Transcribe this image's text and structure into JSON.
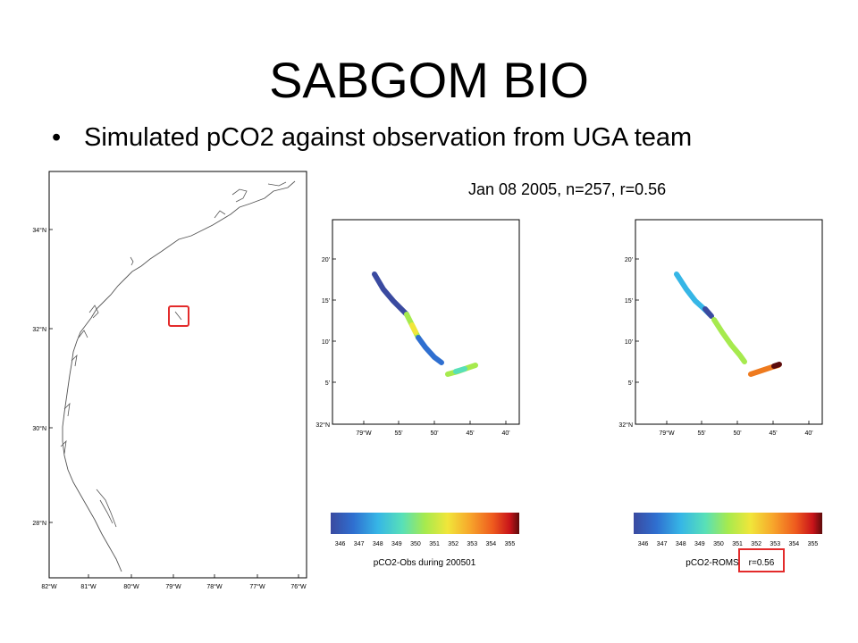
{
  "slide": {
    "title": "SABGOM BIO",
    "bullet": "Simulated pCO2 against observation from UGA team",
    "caption": "Jan 08 2005, n=257, r=0.56"
  },
  "colors": {
    "highlight_box": "#e32b2b",
    "coastline": "#555555",
    "colormap": [
      "#3a4aa0",
      "#2f6fd0",
      "#36b6e6",
      "#58e0b8",
      "#a6ea4e",
      "#f1e63a",
      "#f7a52b",
      "#ee5a1e",
      "#c8141a",
      "#5c0b0b"
    ]
  },
  "map": {
    "y_ticks": [
      "34°N",
      "32°N",
      "30°N",
      "28°N"
    ],
    "x_ticks": [
      "82°W",
      "81°W",
      "80°W",
      "79°W",
      "78°W",
      "77°W",
      "76°W"
    ]
  },
  "panels": [
    {
      "id": "obs",
      "y_ticks": [
        "20'",
        "15'",
        "10'",
        "5'",
        "32°N"
      ],
      "x_ticks": [
        "79°W",
        "55'",
        "50'",
        "45'",
        "40'"
      ],
      "colorbar_ticks": [
        "346",
        "347",
        "348",
        "349",
        "350",
        "351",
        "352",
        "353",
        "354",
        "355"
      ],
      "colorbar_label": "pCO2-Obs during 200501"
    },
    {
      "id": "roms",
      "y_ticks": [
        "20'",
        "15'",
        "10'",
        "5'",
        "32°N"
      ],
      "x_ticks": [
        "79°W",
        "55'",
        "50'",
        "45'",
        "40'"
      ],
      "colorbar_ticks": [
        "346",
        "347",
        "348",
        "349",
        "350",
        "351",
        "352",
        "353",
        "354",
        "355"
      ],
      "colorbar_label": "pCO2-ROMS",
      "colorbar_label_extra": "r=0.56"
    }
  ]
}
